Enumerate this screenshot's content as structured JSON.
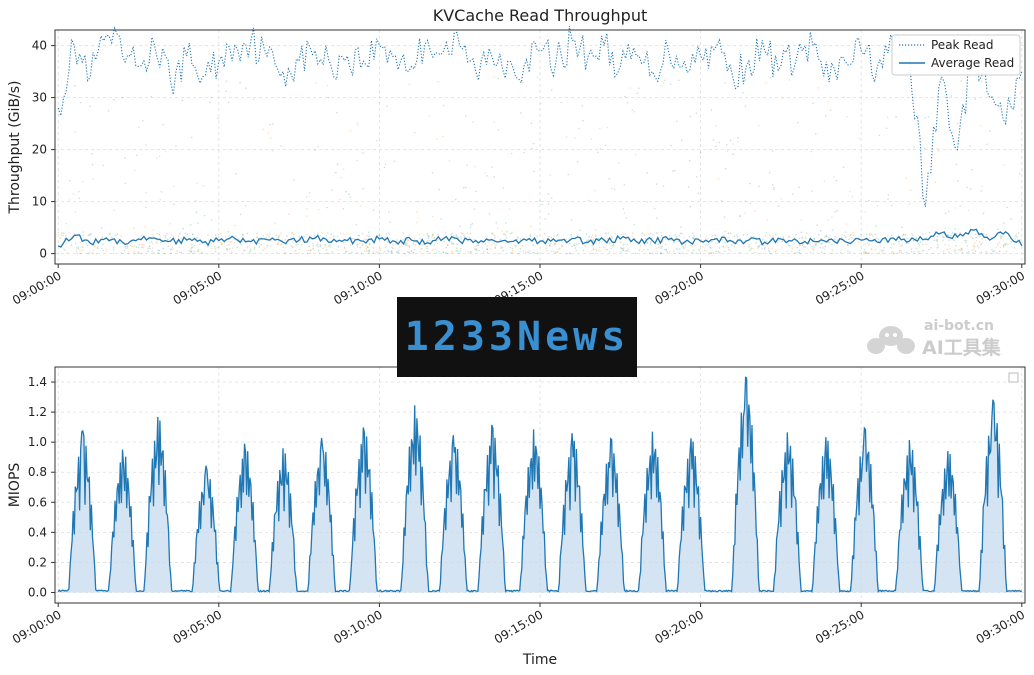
{
  "colors": {
    "accent": "#1f77b4",
    "scatter1": "#1f77b4",
    "scatter2": "#ff7f0e",
    "scatter3": "#2ca02c",
    "fill": "#c6dbef"
  },
  "watermark": {
    "text": "1233News",
    "site": "ai-bot.cn",
    "site_name": "AI工具集"
  },
  "chart_data": [
    {
      "type": "line",
      "title": "KVCache Read Throughput",
      "xlabel": "",
      "ylabel": "Throughput (GiB/s)",
      "x_ticks": [
        "09:00:00",
        "09:05:00",
        "09:10:00",
        "09:15:00",
        "09:20:00",
        "09:25:00",
        "09:30:00"
      ],
      "y_ticks": [
        "0",
        "10",
        "20",
        "30",
        "40"
      ],
      "ylim": [
        -2,
        43
      ],
      "xlim_minutes": [
        -0.1,
        30.1
      ],
      "grid": true,
      "legend": {
        "position": "top-right",
        "entries": [
          "Peak Read",
          "Average Read"
        ]
      },
      "series": [
        {
          "name": "Peak Read",
          "style": "dotted",
          "x_minutes": [
            0,
            0.5,
            1,
            1.5,
            2,
            2.5,
            3,
            3.5,
            4,
            4.5,
            5,
            5.5,
            6,
            6.5,
            7,
            7.5,
            8,
            8.5,
            9,
            9.5,
            10,
            10.5,
            11,
            11.5,
            12,
            12.5,
            13,
            13.5,
            14,
            14.5,
            15,
            15.5,
            16,
            16.5,
            17,
            17.5,
            18,
            18.5,
            19,
            19.5,
            20,
            20.5,
            21,
            21.5,
            22,
            22.5,
            23,
            23.5,
            24,
            24.5,
            25,
            25.5,
            26,
            26.5,
            27,
            27.5,
            28,
            28.5,
            29,
            29.5,
            30
          ],
          "values": [
            28,
            40,
            34,
            42,
            38,
            36,
            40,
            33,
            38,
            34,
            37,
            40,
            41,
            38,
            35,
            37,
            39,
            36,
            38,
            37,
            40,
            38,
            36,
            41,
            39,
            40,
            35,
            38,
            37,
            36,
            39,
            37,
            41,
            38,
            40,
            36,
            38,
            35,
            39,
            37,
            38,
            40,
            34,
            37,
            39,
            36,
            38,
            40,
            33,
            37,
            39,
            36,
            40,
            38,
            9,
            34,
            20,
            40,
            30,
            25,
            35
          ]
        },
        {
          "name": "Average Read",
          "style": "solid",
          "x_minutes": [
            0,
            0.5,
            1,
            1.5,
            2,
            2.5,
            3,
            3.5,
            4,
            4.5,
            5,
            5.5,
            6,
            6.5,
            7,
            7.5,
            8,
            8.5,
            9,
            9.5,
            10,
            10.5,
            11,
            11.5,
            12,
            12.5,
            13,
            13.5,
            14,
            14.5,
            15,
            15.5,
            16,
            16.5,
            17,
            17.5,
            18,
            18.5,
            19,
            19.5,
            20,
            20.5,
            21,
            21.5,
            22,
            22.5,
            23,
            23.5,
            24,
            24.5,
            25,
            25.5,
            26,
            26.5,
            27,
            27.5,
            28,
            28.5,
            29,
            29.5,
            30
          ],
          "values": [
            1.5,
            3.5,
            2.0,
            3.0,
            2.2,
            2.8,
            3.0,
            2.4,
            2.6,
            2.1,
            2.5,
            2.9,
            2.3,
            2.7,
            2.2,
            2.6,
            3.0,
            2.2,
            2.5,
            2.4,
            2.8,
            2.3,
            2.6,
            2.1,
            2.9,
            2.4,
            2.5,
            2.7,
            2.2,
            2.8,
            2.4,
            2.3,
            2.9,
            2.2,
            2.6,
            2.8,
            2.3,
            2.5,
            2.7,
            2.2,
            2.4,
            2.9,
            2.3,
            2.6,
            2.2,
            2.8,
            2.5,
            2.4,
            2.7,
            2.3,
            2.6,
            2.2,
            3.0,
            2.4,
            2.8,
            4.0,
            3.2,
            4.5,
            2.6,
            4.2,
            1.5
          ]
        }
      ]
    },
    {
      "type": "area",
      "title": "",
      "xlabel": "Time",
      "ylabel": "MIOPS",
      "x_ticks": [
        "09:00:00",
        "09:05:00",
        "09:10:00",
        "09:15:00",
        "09:20:00",
        "09:25:00",
        "09:30:00"
      ],
      "y_ticks": [
        "0.0",
        "0.2",
        "0.4",
        "0.6",
        "0.8",
        "1.0",
        "1.2",
        "1.4"
      ],
      "ylim": [
        -0.07,
        1.5
      ],
      "xlim_minutes": [
        -0.1,
        30.1
      ],
      "grid": true,
      "legend": {
        "position": "top-right",
        "entries": []
      },
      "baseline": 0.01,
      "series": [
        {
          "name": "",
          "peak_minutes": [
            0.75,
            2.0,
            3.1,
            4.6,
            5.8,
            7.0,
            8.2,
            9.5,
            11.1,
            12.3,
            13.5,
            14.8,
            16.0,
            17.2,
            18.5,
            19.7,
            21.4,
            22.7,
            23.9,
            25.1,
            26.5,
            27.7,
            29.1
          ],
          "peak_values": [
            1.07,
            0.95,
            1.17,
            0.84,
            0.99,
            0.96,
            1.03,
            1.1,
            1.24,
            1.05,
            1.11,
            1.07,
            1.06,
            1.02,
            1.06,
            1.03,
            1.43,
            1.06,
            1.03,
            1.09,
            1.01,
            0.94,
            1.28
          ]
        }
      ]
    }
  ]
}
